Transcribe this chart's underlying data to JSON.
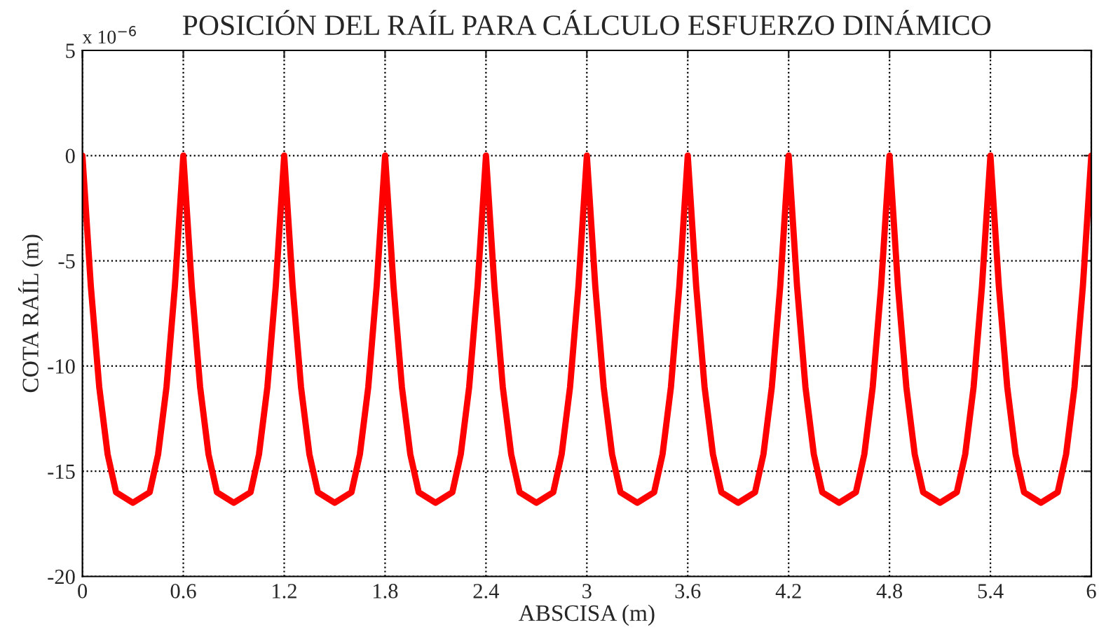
{
  "chart_data": {
    "type": "line",
    "title": "POSICIÓN DEL RAÍL PARA CÁLCULO ESFUERZO DINÁMICO",
    "xlabel": "ABSCISA (m)",
    "ylabel": "COTA RAÍL (m)",
    "annotations": [
      "x 10$^{−6}$"
    ],
    "x": [
      0,
      0.05,
      0.1,
      0.15,
      0.2,
      0.3,
      0.4,
      0.45,
      0.5,
      0.55,
      0.6,
      0.65,
      0.7,
      0.75,
      0.8,
      0.9,
      1,
      1.05,
      1.1,
      1.15,
      1.2,
      1.25,
      1.3,
      1.35,
      1.4,
      1.5,
      1.6,
      1.65,
      1.7,
      1.75,
      1.8,
      1.85,
      1.9,
      1.95,
      2,
      2.1,
      2.2,
      2.25,
      2.3,
      2.35,
      2.4,
      2.45,
      2.5,
      2.55,
      2.6,
      2.7,
      2.8,
      2.85,
      2.9,
      2.95,
      3,
      3.05,
      3.1,
      3.15,
      3.2,
      3.3,
      3.4,
      3.45,
      3.5,
      3.55,
      3.6,
      3.65,
      3.7,
      3.75,
      3.8,
      3.9,
      4,
      4.05,
      4.1,
      4.15,
      4.2,
      4.25,
      4.3,
      4.35,
      4.4,
      4.5,
      4.6,
      4.65,
      4.7,
      4.75,
      4.8,
      4.85,
      4.9,
      4.95,
      5,
      5.1,
      5.2,
      5.25,
      5.3,
      5.35,
      5.4,
      5.45,
      5.5,
      5.55,
      5.6,
      5.7,
      5.8,
      5.85,
      5.9,
      5.95,
      6
    ],
    "series": [
      {
        "color": "#ff0000",
        "values": [
          0,
          -6.2,
          -11,
          -14.2,
          -16,
          -16.5,
          -16,
          -14.2,
          -11,
          -6.2,
          0,
          -6.2,
          -11,
          -14.2,
          -16,
          -16.5,
          -16,
          -14.2,
          -11,
          -6.2,
          0,
          -6.2,
          -11,
          -14.2,
          -16,
          -16.5,
          -16,
          -14.2,
          -11,
          -6.2,
          0,
          -6.2,
          -11,
          -14.2,
          -16,
          -16.5,
          -16,
          -14.2,
          -11,
          -6.2,
          0,
          -6.2,
          -11,
          -14.2,
          -16,
          -16.5,
          -16,
          -14.2,
          -11,
          -6.2,
          0,
          -6.2,
          -11,
          -14.2,
          -16,
          -16.5,
          -16,
          -14.2,
          -11,
          -6.2,
          0,
          -6.2,
          -11,
          -14.2,
          -16,
          -16.5,
          -16,
          -14.2,
          -11,
          -6.2,
          0,
          -6.2,
          -11,
          -14.2,
          -16,
          -16.5,
          -16,
          -14.2,
          -11,
          -6.2,
          0,
          -6.2,
          -11,
          -14.2,
          -16,
          -16.5,
          -16,
          -14.2,
          -11,
          -6.2,
          0,
          -6.2,
          -11,
          -14.2,
          -16,
          -16.5,
          -16,
          -14.2,
          -11,
          -6.2,
          0
        ]
      }
    ],
    "xlim": [
      0,
      6
    ],
    "xticks": [
      0,
      0.6,
      1.2,
      1.8,
      2.4,
      3,
      3.6,
      4.2,
      4.8,
      5.4,
      6
    ],
    "ylim": [
      -20,
      5
    ],
    "yticks": [
      -20,
      -15,
      -10,
      -5,
      0,
      5
    ],
    "grid": true,
    "line_style": "solid",
    "marker": "none",
    "legend": false
  }
}
